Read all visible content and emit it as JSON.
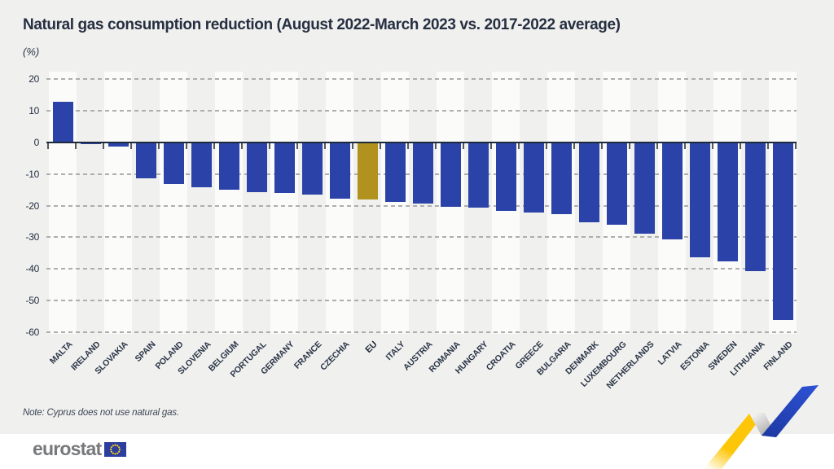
{
  "title": "Natural gas consumption reduction (August 2022-March 2023 vs. 2017-2022 average)",
  "unit_label": "(%)",
  "note": "Note: Cyprus does not use natural gas.",
  "footer": {
    "logo_text": "eurostat"
  },
  "colors": {
    "page_background": "#f0f0ee",
    "stripe_white": "#fbfbfa",
    "bar_blue": "#2b43a8",
    "eu_gold": "#b1921f",
    "axis_dark": "#1d2a3a",
    "grid_gray": "#aeaeae",
    "ribbon_yellow": "#fdc608",
    "ribbon_blue": "#2848c4",
    "flag_blue": "#2c3e9e",
    "star_yellow": "#ffd617"
  },
  "chart_data": {
    "type": "bar",
    "title": "Natural gas consumption reduction (August 2022-March 2023 vs. 2017-2022 average)",
    "ylabel": "(%)",
    "ylim": [
      -60,
      20
    ],
    "yticks": [
      20,
      10,
      0,
      -10,
      -20,
      -30,
      -40,
      -50,
      -60
    ],
    "grid": "horizontal-dashed",
    "legend": "none",
    "highlight_category": "EU",
    "categories": [
      "MALTA",
      "IRELAND",
      "SLOVAKIA",
      "SPAIN",
      "POLAND",
      "SLOVENIA",
      "BELGIUM",
      "PORTUGAL",
      "GERMANY",
      "FRANCE",
      "CZECHIA",
      "EU",
      "ITALY",
      "AUSTRIA",
      "ROMANIA",
      "HUNGARY",
      "CROATIA",
      "GREECE",
      "BULGARIA",
      "DENMARK",
      "LUXEMBOURG",
      "NETHERLANDS",
      "LATVIA",
      "ESTONIA",
      "SWEDEN",
      "LITHUANIA",
      "FINLAND"
    ],
    "values": [
      12.8,
      -0.3,
      -1.1,
      -11.2,
      -12.8,
      -14.0,
      -14.6,
      -15.4,
      -15.6,
      -16.3,
      -17.4,
      -17.7,
      -18.6,
      -19.1,
      -20.0,
      -20.3,
      -21.5,
      -22.0,
      -22.4,
      -24.9,
      -25.9,
      -28.7,
      -30.3,
      -36.1,
      -37.3,
      -40.5,
      -55.8
    ]
  }
}
